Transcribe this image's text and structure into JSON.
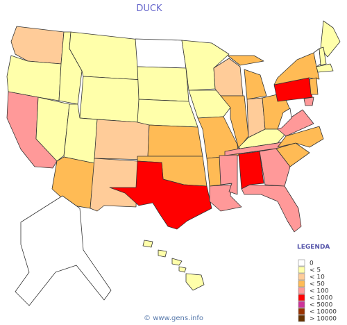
{
  "title": "DUCK",
  "footer": "© www.gens.info",
  "legend": {
    "title": "LEGENDA",
    "items": [
      {
        "label": "0",
        "color": "#ffffff"
      },
      {
        "label": "< 5",
        "color": "#ffffaa"
      },
      {
        "label": "< 10",
        "color": "#ffcc99"
      },
      {
        "label": "< 50",
        "color": "#ffbb55"
      },
      {
        "label": "< 100",
        "color": "#ff9999"
      },
      {
        "label": "< 1000",
        "color": "#ff0000"
      },
      {
        "label": "< 5000",
        "color": "#cc3399"
      },
      {
        "label": "< 10000",
        "color": "#993300"
      },
      {
        "label": "> 10000",
        "color": "#663300"
      }
    ]
  },
  "regions": [
    {
      "color": "#ffcc99"
    },
    {
      "color": "#ffffaa"
    },
    {
      "color": "#ff9999"
    },
    {
      "color": "#ffffaa"
    },
    {
      "color": "#ffffaa"
    },
    {
      "color": "#ffffaa"
    },
    {
      "color": "#ffffaa"
    },
    {
      "color": "#ffffaa"
    },
    {
      "color": "#ffbb55"
    },
    {
      "color": "#ffcc99"
    },
    {
      "color": "#ffcc99"
    },
    {
      "color": "#ffffff"
    },
    {
      "color": "#ffffaa"
    },
    {
      "color": "#ffffaa"
    },
    {
      "color": "#ffbb55"
    },
    {
      "color": "#ffbb55"
    },
    {
      "color": "#ff0000"
    },
    {
      "color": "#ffffaa"
    },
    {
      "color": "#ffffaa"
    },
    {
      "color": "#ffbb55"
    },
    {
      "color": "#ffbb55"
    },
    {
      "color": "#ff9999"
    },
    {
      "color": "#ffcc99"
    },
    {
      "color": "#ffbb55"
    },
    {
      "color": "#ffbb55"
    },
    {
      "color": "#ffbb55"
    },
    {
      "color": "#ffcc99"
    },
    {
      "color": "#ffbb55"
    },
    {
      "color": "#ffffaa"
    },
    {
      "color": "#ff9999"
    },
    {
      "color": "#ff9999"
    },
    {
      "color": "#ff0000"
    },
    {
      "color": "#ff9999"
    },
    {
      "color": "#ff9999"
    },
    {
      "color": "#ffbb55"
    },
    {
      "color": "#ffbb55"
    },
    {
      "color": "#ff9999"
    },
    {
      "color": "#ffffff"
    },
    {
      "color": "#ff0000"
    },
    {
      "color": "#ffbb55"
    },
    {
      "color": "#ffffaa"
    },
    {
      "color": "#ffffff"
    },
    {
      "color": "#ffffaa"
    },
    {
      "color": "#ffffaa"
    },
    {
      "color": "#ffbb55"
    },
    {
      "color": "#ff9999"
    },
    {
      "color": "#ffffff"
    },
    {
      "color": "#ffffaa"
    }
  ]
}
